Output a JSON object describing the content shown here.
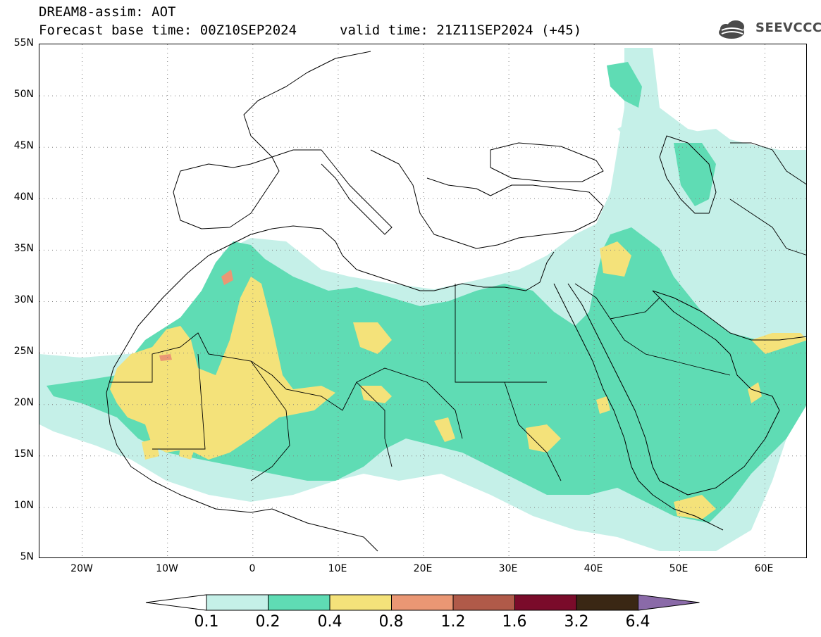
{
  "header": {
    "line1": "DREAM8-assim: AOT",
    "line2": "Forecast base time: 00Z10SEP2024",
    "valid_time": "valid time: 21Z11SEP2024 (+45)"
  },
  "logo": {
    "text": "SEEVCCC",
    "icon": "cloud-logo-icon"
  },
  "map": {
    "lat_labels": [
      "55N",
      "50N",
      "45N",
      "40N",
      "35N",
      "30N",
      "25N",
      "20N",
      "15N",
      "10N",
      "5N"
    ],
    "lon_labels": [
      "20W",
      "10W",
      "0",
      "10E",
      "20E",
      "30E",
      "40E",
      "50E",
      "60E"
    ],
    "lon_range": [
      -25,
      65
    ],
    "lat_range": [
      5,
      55
    ],
    "gridlines": "dotted"
  },
  "legend": {
    "labels": [
      "0.1",
      "0.2",
      "0.4",
      "0.8",
      "1.2",
      "1.6",
      "3.2",
      "6.4"
    ],
    "colors": [
      "#ffffff",
      "#c5f0e8",
      "#5fdcb4",
      "#f4e27a",
      "#ea9774",
      "#b05a49",
      "#7a0b2a",
      "#3a2714",
      "#8a6aa8"
    ]
  }
}
